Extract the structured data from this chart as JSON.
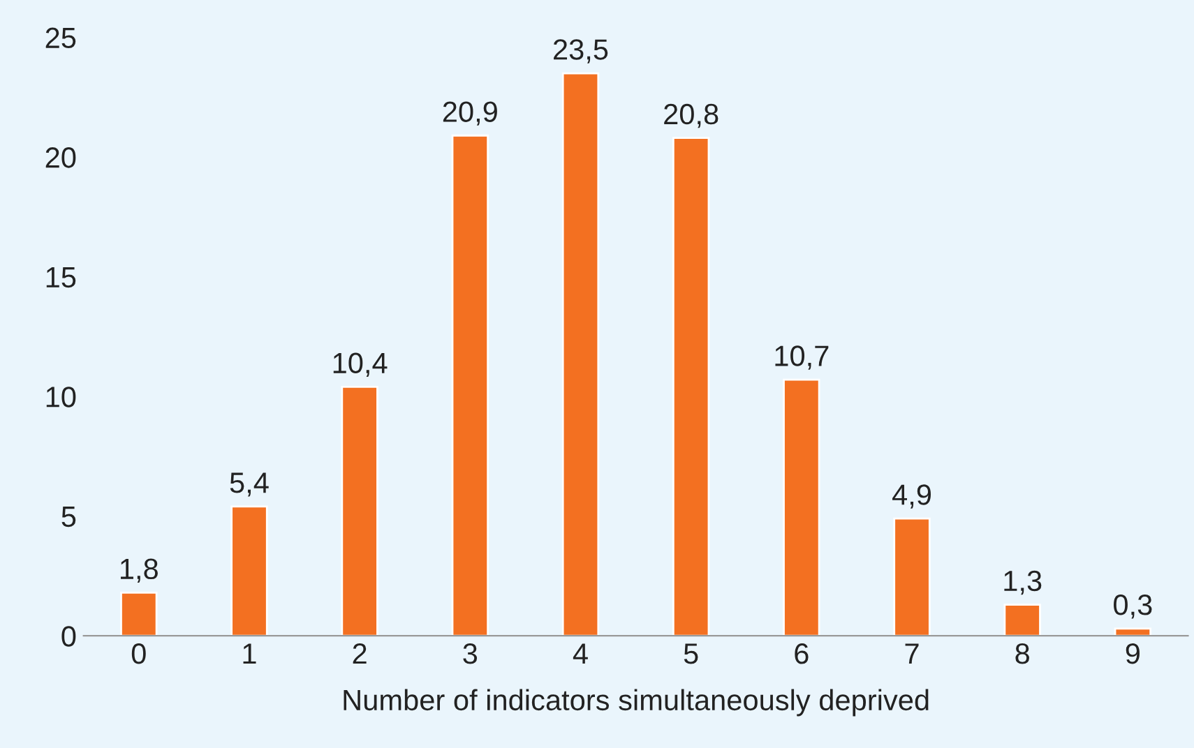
{
  "chart_data": {
    "type": "bar",
    "xlabel": "Number of indicators simultaneously deprived",
    "categories": [
      "0",
      "1",
      "2",
      "3",
      "4",
      "5",
      "6",
      "7",
      "8",
      "9"
    ],
    "values": [
      1.8,
      5.4,
      10.4,
      20.9,
      23.5,
      20.8,
      10.7,
      4.9,
      1.3,
      0.3
    ],
    "value_labels": [
      "1,8",
      "5,4",
      "10,4",
      "20,9",
      "23,5",
      "20,8",
      "10,7",
      "4,9",
      "1,3",
      "0,3"
    ],
    "color": "#f37021",
    "ylim": [
      0,
      25
    ],
    "yticks": [
      0,
      5,
      10,
      15,
      20,
      25
    ],
    "grid": false,
    "legend": false
  }
}
